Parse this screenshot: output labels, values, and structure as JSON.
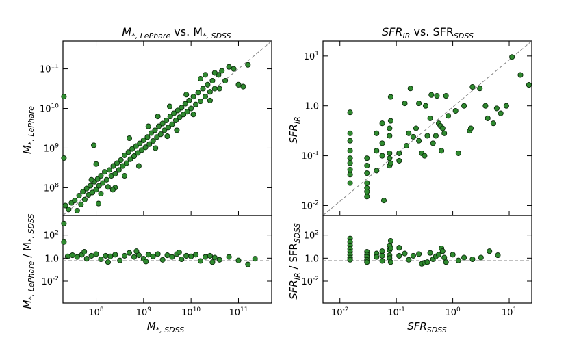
{
  "figure": {
    "panels": [
      {
        "id": "mass",
        "title": {
          "main": "M",
          "sub1": "*, LePhare",
          "mid": " vs. M",
          "sub2": "*, SDSS"
        },
        "ylabel_top": {
          "main": "M",
          "sub": "*, LePhare"
        },
        "ylabel_bottom": {
          "main": "M",
          "sub1": "*, LePhare",
          "mid": " / M",
          "sub2": "*, SDSS"
        },
        "xlabel": {
          "main": "M",
          "sub": "*, SDSS"
        },
        "top_y_ticks": [
          {
            "base": "10",
            "exp": "8"
          },
          {
            "base": "10",
            "exp": "9"
          },
          {
            "base": "10",
            "exp": "10"
          },
          {
            "base": "10",
            "exp": "11"
          }
        ],
        "bottom_y_ticks": [
          {
            "base": "10",
            "exp": "-2"
          },
          {
            "base": "1.0",
            "exp": ""
          },
          {
            "base": "10",
            "exp": "2"
          }
        ],
        "x_ticks": [
          {
            "base": "10",
            "exp": "8"
          },
          {
            "base": "10",
            "exp": "9"
          },
          {
            "base": "10",
            "exp": "10"
          },
          {
            "base": "10",
            "exp": "11"
          }
        ]
      },
      {
        "id": "sfr",
        "title": {
          "main": "SFR",
          "sub1": "IR",
          "mid": " vs. SFR",
          "sub2": "SDSS"
        },
        "ylabel_top": {
          "main": "SFR",
          "sub": "IR"
        },
        "ylabel_bottom": {
          "main": "SFR",
          "sub1": "IR",
          "mid": " / SFR",
          "sub2": "SDSS"
        },
        "xlabel": {
          "main": "SFR",
          "sub": "SDSS"
        },
        "top_y_ticks": [
          {
            "base": "10",
            "exp": "-2"
          },
          {
            "base": "10",
            "exp": "-1"
          },
          {
            "base": "1.0",
            "exp": ""
          },
          {
            "base": "10",
            "exp": "1"
          }
        ],
        "bottom_y_ticks": [
          {
            "base": "10",
            "exp": "-2"
          },
          {
            "base": "1.0",
            "exp": ""
          },
          {
            "base": "10",
            "exp": "2"
          }
        ],
        "x_ticks": [
          {
            "base": "10",
            "exp": "-2"
          },
          {
            "base": "10",
            "exp": "-1"
          },
          {
            "base": "10",
            "exp": "0"
          },
          {
            "base": "10",
            "exp": "1"
          }
        ]
      }
    ]
  },
  "chart_data": [
    {
      "type": "scatter",
      "title": "M*,LePhare vs. M*,SDSS",
      "xlabel": "M*,SDSS",
      "ylabel": "M*,LePhare",
      "xscale": "log",
      "yscale": "log",
      "xlim_log10": [
        7.3,
        11.7
      ],
      "ylim_log10": [
        7.3,
        11.7
      ],
      "reference_line": "y = x",
      "point_color": "#2f8a2f",
      "points_log10": [
        [
          7.32,
          10.3
        ],
        [
          7.32,
          8.75
        ],
        [
          7.35,
          7.55
        ],
        [
          7.42,
          7.45
        ],
        [
          7.48,
          7.62
        ],
        [
          7.55,
          7.68
        ],
        [
          7.6,
          7.42
        ],
        [
          7.64,
          7.8
        ],
        [
          7.68,
          7.58
        ],
        [
          7.72,
          7.9
        ],
        [
          7.76,
          7.7
        ],
        [
          7.8,
          7.98
        ],
        [
          7.84,
          7.82
        ],
        [
          7.88,
          8.05
        ],
        [
          7.92,
          7.88
        ],
        [
          7.96,
          8.15
        ],
        [
          8.0,
          7.95
        ],
        [
          8.03,
          8.22
        ],
        [
          8.06,
          8.05
        ],
        [
          8.1,
          8.3
        ],
        [
          8.14,
          8.12
        ],
        [
          8.18,
          8.4
        ],
        [
          8.22,
          8.2
        ],
        [
          8.25,
          8.02
        ],
        [
          8.28,
          8.45
        ],
        [
          8.32,
          8.3
        ],
        [
          8.36,
          8.55
        ],
        [
          8.4,
          8.35
        ],
        [
          8.44,
          8.62
        ],
        [
          8.48,
          8.45
        ],
        [
          8.52,
          8.7
        ],
        [
          8.56,
          8.55
        ],
        [
          8.6,
          8.82
        ],
        [
          8.64,
          8.62
        ],
        [
          8.68,
          8.9
        ],
        [
          8.72,
          8.72
        ],
        [
          8.76,
          8.98
        ],
        [
          8.8,
          8.8
        ],
        [
          8.84,
          9.05
        ],
        [
          8.88,
          8.88
        ],
        [
          8.92,
          9.12
        ],
        [
          8.96,
          8.95
        ],
        [
          9.0,
          9.2
        ],
        [
          9.04,
          9.02
        ],
        [
          9.08,
          9.28
        ],
        [
          9.12,
          9.1
        ],
        [
          9.16,
          9.38
        ],
        [
          9.2,
          9.18
        ],
        [
          9.24,
          9.45
        ],
        [
          9.28,
          9.28
        ],
        [
          9.32,
          9.55
        ],
        [
          9.36,
          9.35
        ],
        [
          9.4,
          9.62
        ],
        [
          9.44,
          9.45
        ],
        [
          9.48,
          9.7
        ],
        [
          9.52,
          9.52
        ],
        [
          9.56,
          9.8
        ],
        [
          9.6,
          9.6
        ],
        [
          9.64,
          9.88
        ],
        [
          9.68,
          9.7
        ],
        [
          9.72,
          9.95
        ],
        [
          9.76,
          9.78
        ],
        [
          9.8,
          10.02
        ],
        [
          9.84,
          9.85
        ],
        [
          9.88,
          10.12
        ],
        [
          9.92,
          9.92
        ],
        [
          9.96,
          10.2
        ],
        [
          10.0,
          10.0
        ],
        [
          10.05,
          10.3
        ],
        [
          10.1,
          10.1
        ],
        [
          10.15,
          10.4
        ],
        [
          10.2,
          10.18
        ],
        [
          10.25,
          10.5
        ],
        [
          10.3,
          10.3
        ],
        [
          10.35,
          10.6
        ],
        [
          10.4,
          10.42
        ],
        [
          10.45,
          10.7
        ],
        [
          10.5,
          10.5
        ],
        [
          10.58,
          10.85
        ],
        [
          10.65,
          10.95
        ],
        [
          10.72,
          10.7
        ],
        [
          10.8,
          11.05
        ],
        [
          10.9,
          11.0
        ],
        [
          11.0,
          10.6
        ],
        [
          11.1,
          10.55
        ],
        [
          11.2,
          11.1
        ],
        [
          7.9,
          8.2
        ],
        [
          8.0,
          8.6
        ],
        [
          8.1,
          7.85
        ],
        [
          8.4,
          8.0
        ],
        [
          8.6,
          8.3
        ],
        [
          8.7,
          9.25
        ],
        [
          8.9,
          8.55
        ],
        [
          9.1,
          9.55
        ],
        [
          9.25,
          9.0
        ],
        [
          9.3,
          9.8
        ],
        [
          9.5,
          9.3
        ],
        [
          9.55,
          10.05
        ],
        [
          9.7,
          9.45
        ],
        [
          9.9,
          10.35
        ],
        [
          10.05,
          9.85
        ],
        [
          10.2,
          10.75
        ],
        [
          10.4,
          10.2
        ],
        [
          10.6,
          10.5
        ],
        [
          10.5,
          10.9
        ],
        [
          10.3,
          10.85
        ],
        [
          7.95,
          9.07
        ],
        [
          8.05,
          7.6
        ],
        [
          8.35,
          7.95
        ]
      ],
      "ratio_points_log10": [
        [
          7.32,
          3.0
        ],
        [
          7.32,
          1.4
        ],
        [
          7.4,
          0.15
        ],
        [
          7.5,
          0.25
        ],
        [
          7.6,
          0.1
        ],
        [
          7.7,
          0.3
        ],
        [
          7.8,
          -0.05
        ],
        [
          7.9,
          0.2
        ],
        [
          8.0,
          0.35
        ],
        [
          8.1,
          -0.1
        ],
        [
          8.2,
          0.2
        ],
        [
          8.3,
          0.15
        ],
        [
          8.4,
          0.3
        ],
        [
          8.5,
          -0.2
        ],
        [
          8.6,
          0.2
        ],
        [
          8.7,
          0.45
        ],
        [
          8.8,
          0.1
        ],
        [
          8.9,
          0.25
        ],
        [
          9.0,
          -0.05
        ],
        [
          9.1,
          0.3
        ],
        [
          9.2,
          0.15
        ],
        [
          9.3,
          0.35
        ],
        [
          9.4,
          -0.15
        ],
        [
          9.5,
          0.25
        ],
        [
          9.6,
          0.1
        ],
        [
          9.7,
          0.35
        ],
        [
          9.8,
          -0.1
        ],
        [
          9.9,
          0.2
        ],
        [
          10.0,
          0.15
        ],
        [
          10.1,
          0.3
        ],
        [
          10.2,
          -0.25
        ],
        [
          10.3,
          0.1
        ],
        [
          10.4,
          0.2
        ],
        [
          10.5,
          0.05
        ],
        [
          10.6,
          -0.15
        ],
        [
          10.8,
          0.1
        ],
        [
          11.0,
          -0.2
        ],
        [
          11.2,
          -0.55
        ],
        [
          11.35,
          -0.05
        ],
        [
          8.25,
          -0.35
        ],
        [
          9.05,
          -0.3
        ],
        [
          9.75,
          0.5
        ],
        [
          10.45,
          -0.35
        ],
        [
          7.75,
          0.55
        ],
        [
          8.85,
          0.6
        ]
      ]
    },
    {
      "type": "scatter",
      "title": "SFRIR vs. SFRSDSS",
      "xlabel": "SFRSDSS",
      "ylabel": "SFRIR",
      "xscale": "log",
      "yscale": "log",
      "xlim_log10": [
        -2.3,
        1.4
      ],
      "ylim_log10": [
        -2.2,
        1.3
      ],
      "reference_line": "y = x",
      "point_color": "#2f8a2f",
      "points_log10": [
        [
          -1.82,
          -0.13
        ],
        [
          -1.82,
          -0.55
        ],
        [
          -1.82,
          -0.7
        ],
        [
          -1.82,
          -0.9
        ],
        [
          -1.82,
          -1.05
        ],
        [
          -1.82,
          -1.15
        ],
        [
          -1.82,
          -1.28
        ],
        [
          -1.82,
          -1.38
        ],
        [
          -1.82,
          -1.55
        ],
        [
          -1.52,
          -1.05
        ],
        [
          -1.52,
          -1.2
        ],
        [
          -1.52,
          -1.35
        ],
        [
          -1.52,
          -1.55
        ],
        [
          -1.52,
          -1.65
        ],
        [
          -1.52,
          -1.72
        ],
        [
          -1.52,
          -1.82
        ],
        [
          -1.35,
          -0.55
        ],
        [
          -1.35,
          -0.9
        ],
        [
          -1.35,
          -1.3
        ],
        [
          -1.25,
          -0.35
        ],
        [
          -1.25,
          -0.75
        ],
        [
          -1.25,
          -1.0
        ],
        [
          -1.22,
          -1.9
        ],
        [
          -1.12,
          -0.95
        ],
        [
          -1.12,
          -1.05
        ],
        [
          -1.12,
          -1.2
        ],
        [
          -1.12,
          -0.6
        ],
        [
          -1.12,
          -0.45
        ],
        [
          -1.1,
          0.18
        ],
        [
          -1.1,
          -0.3
        ],
        [
          -1.1,
          -1.15
        ],
        [
          -0.95,
          -0.95
        ],
        [
          -0.95,
          -1.1
        ],
        [
          -0.85,
          0.05
        ],
        [
          -0.82,
          -0.8
        ],
        [
          -0.78,
          -0.55
        ],
        [
          -0.75,
          0.35
        ],
        [
          -0.7,
          -0.62
        ],
        [
          -0.65,
          -0.45
        ],
        [
          -0.6,
          -0.7
        ],
        [
          -0.55,
          -0.95
        ],
        [
          -0.5,
          -1.0
        ],
        [
          -0.48,
          0.0
        ],
        [
          -0.45,
          -0.6
        ],
        [
          -0.4,
          -0.25
        ],
        [
          -0.38,
          0.22
        ],
        [
          -0.35,
          -0.75
        ],
        [
          -0.3,
          -0.6
        ],
        [
          -0.28,
          0.2
        ],
        [
          -0.25,
          -0.35
        ],
        [
          -0.22,
          -0.4
        ],
        [
          -0.2,
          -0.9
        ],
        [
          -0.18,
          -0.45
        ],
        [
          -0.15,
          -0.55
        ],
        [
          -0.12,
          0.2
        ],
        [
          -0.08,
          -0.2
        ],
        [
          0.05,
          -0.1
        ],
        [
          0.1,
          -0.95
        ],
        [
          0.2,
          0.0
        ],
        [
          0.3,
          -0.5
        ],
        [
          0.32,
          -0.45
        ],
        [
          0.35,
          0.38
        ],
        [
          0.48,
          0.35
        ],
        [
          0.62,
          -0.25
        ],
        [
          0.72,
          -0.35
        ],
        [
          0.78,
          -0.05
        ],
        [
          0.85,
          -0.15
        ],
        [
          1.05,
          0.98
        ],
        [
          1.2,
          0.62
        ],
        [
          1.35,
          0.42
        ],
        [
          0.95,
          0.0
        ],
        [
          -0.6,
          0.05
        ],
        [
          0.58,
          0.0
        ]
      ],
      "ratio_points_log10": [
        [
          -1.82,
          1.7
        ],
        [
          -1.82,
          1.4
        ],
        [
          -1.82,
          1.1
        ],
        [
          -1.82,
          0.8
        ],
        [
          -1.82,
          0.55
        ],
        [
          -1.82,
          0.3
        ],
        [
          -1.82,
          0.05
        ],
        [
          -1.82,
          -0.15
        ],
        [
          -1.52,
          0.55
        ],
        [
          -1.52,
          0.3
        ],
        [
          -1.52,
          0.1
        ],
        [
          -1.52,
          -0.15
        ],
        [
          -1.52,
          -0.35
        ],
        [
          -1.35,
          0.4
        ],
        [
          -1.35,
          0.1
        ],
        [
          -1.25,
          0.6
        ],
        [
          -1.25,
          0.2
        ],
        [
          -1.25,
          -0.25
        ],
        [
          -1.12,
          1.1
        ],
        [
          -1.12,
          0.7
        ],
        [
          -1.12,
          0.25
        ],
        [
          -1.12,
          0.0
        ],
        [
          -1.1,
          1.5
        ],
        [
          -1.1,
          0.85
        ],
        [
          -1.1,
          -0.35
        ],
        [
          -0.95,
          0.9
        ],
        [
          -0.95,
          0.2
        ],
        [
          -0.85,
          0.4
        ],
        [
          -0.78,
          -0.15
        ],
        [
          -0.7,
          0.2
        ],
        [
          -0.6,
          0.35
        ],
        [
          -0.55,
          -0.5
        ],
        [
          -0.5,
          -0.4
        ],
        [
          -0.45,
          -0.35
        ],
        [
          -0.4,
          0.45
        ],
        [
          -0.35,
          -0.1
        ],
        [
          -0.3,
          0.15
        ],
        [
          -0.25,
          0.3
        ],
        [
          -0.2,
          0.85
        ],
        [
          -0.18,
          0.6
        ],
        [
          -0.15,
          0.05
        ],
        [
          -0.12,
          -0.35
        ],
        [
          0.0,
          0.3
        ],
        [
          0.1,
          -0.2
        ],
        [
          0.2,
          0.05
        ],
        [
          0.35,
          -0.1
        ],
        [
          0.5,
          0.05
        ],
        [
          0.65,
          0.6
        ],
        [
          0.8,
          0.25
        ]
      ]
    }
  ]
}
